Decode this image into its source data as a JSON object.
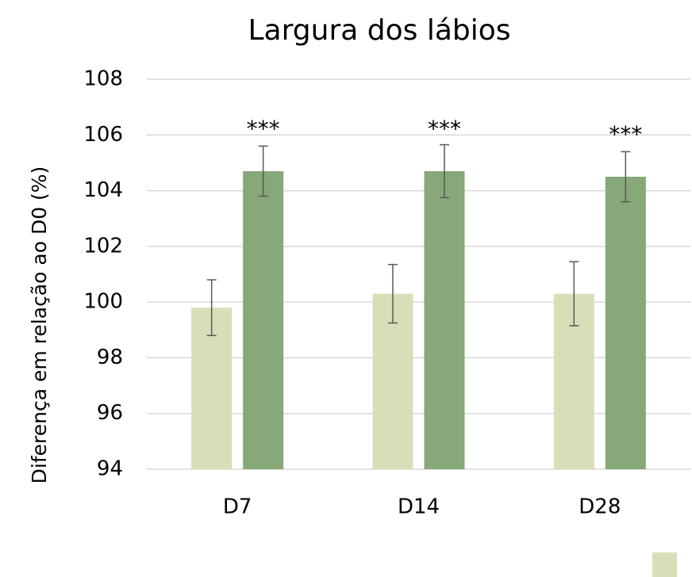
{
  "chart_data": {
    "type": "bar",
    "title": "Largura dos lábios",
    "ylabel": "Diferença em relação ao D0 (%)",
    "categories": [
      "D7",
      "D14",
      "D28"
    ],
    "series": [
      {
        "color": "#d6dfb8",
        "values": [
          99.8,
          100.3,
          100.3
        ],
        "errors": [
          1.0,
          1.05,
          1.15
        ]
      },
      {
        "color": "#87a878",
        "values": [
          104.7,
          104.7,
          104.5
        ],
        "errors": [
          0.9,
          0.95,
          0.9
        ]
      }
    ],
    "annotations": [
      "***",
      "***",
      "***"
    ],
    "ylim": [
      94,
      108
    ],
    "yticks": [
      94,
      96,
      98,
      100,
      102,
      104,
      106,
      108
    ],
    "grid": true
  }
}
